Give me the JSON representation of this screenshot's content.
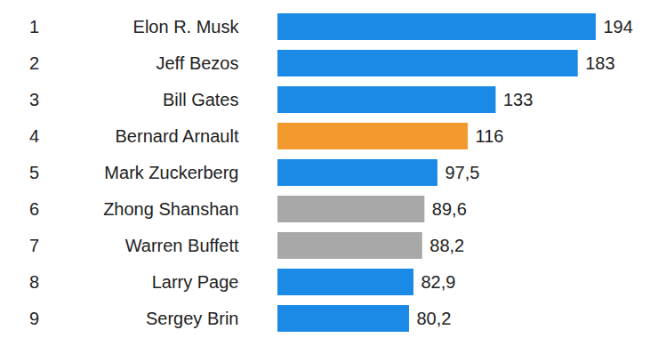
{
  "chart_data": {
    "type": "bar",
    "orientation": "horizontal",
    "ranks": [
      "1",
      "2",
      "3",
      "4",
      "5",
      "6",
      "7",
      "8",
      "9"
    ],
    "categories": [
      "Elon R. Musk",
      "Jeff Bezos",
      "Bill Gates",
      "Bernard Arnault",
      "Mark Zuckerberg",
      "Zhong Shanshan",
      "Warren Buffett",
      "Larry Page",
      "Sergey Brin"
    ],
    "values": [
      194,
      183,
      133,
      116,
      97.5,
      89.6,
      88.2,
      82.9,
      80.2
    ],
    "value_labels": [
      "194",
      "183",
      "133",
      "116",
      "97,5",
      "89,6",
      "88,2",
      "82,9",
      "80,2"
    ],
    "colors": [
      "#1a8ae6",
      "#1a8ae6",
      "#1a8ae6",
      "#f39a2e",
      "#1a8ae6",
      "#a8a8a8",
      "#a8a8a8",
      "#1a8ae6",
      "#1a8ae6"
    ],
    "xlim": [
      0,
      194
    ],
    "data_labels": true,
    "tick_labels": false
  }
}
